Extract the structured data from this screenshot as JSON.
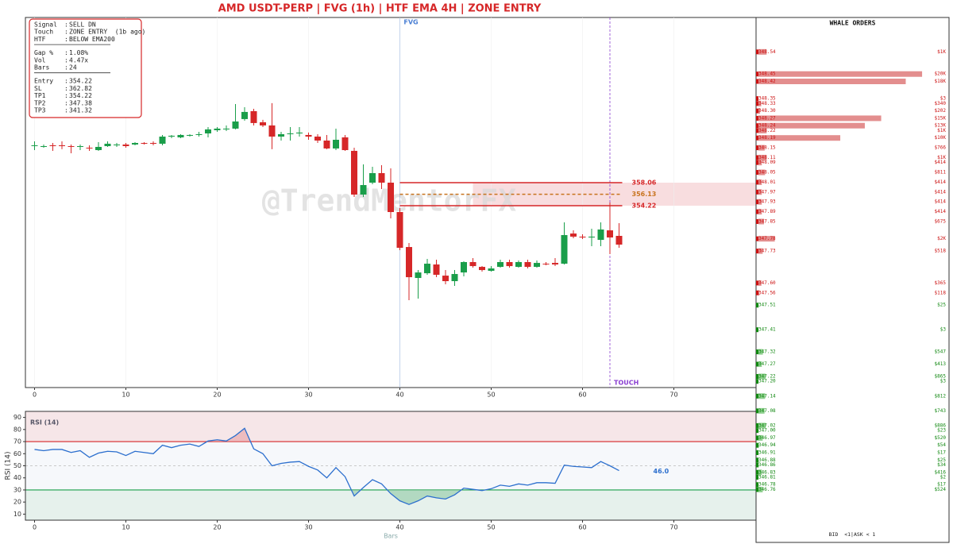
{
  "title": "AMD  USDT-PERP  |  FVG (1h)  |  HTF EMA 4H  |  ZONE ENTRY",
  "info_box": [
    [
      {
        "label": "Signal",
        "value": "SELL DN"
      },
      {
        "label": "Touch",
        "value": "ZONE ENTRY  (1b ago)"
      },
      {
        "label": "HTF",
        "value": "BELOW EMA200"
      }
    ],
    [
      {
        "label": "Gap %",
        "value": "1.08%"
      },
      {
        "label": "Vol",
        "value": "4.47x"
      },
      {
        "label": "Bars",
        "value": "24"
      }
    ],
    [
      {
        "label": "Entry",
        "value": "354.22"
      },
      {
        "label": "SL",
        "value": "362.82"
      },
      {
        "label": "TP1",
        "value": "354.22"
      },
      {
        "label": "TP2",
        "value": "347.38"
      },
      {
        "label": "TP3",
        "value": "341.32"
      }
    ]
  ],
  "chart_data": [
    {
      "type": "candlestick",
      "watermark": "@TrendMentorFX",
      "x": [
        0,
        1,
        2,
        3,
        4,
        5,
        6,
        7,
        8,
        9,
        10,
        11,
        12,
        13,
        14,
        15,
        16,
        17,
        18,
        19,
        20,
        21,
        22,
        23,
        24,
        25,
        26,
        27,
        28,
        29,
        30,
        31,
        32,
        33,
        34,
        35,
        36,
        37,
        38,
        39,
        40,
        41,
        42,
        43,
        44,
        45,
        46,
        47,
        48,
        49,
        50,
        51,
        52,
        53,
        54,
        55,
        56,
        57,
        58,
        59,
        60,
        61,
        62,
        63,
        64
      ],
      "ohlc": [
        [
          364.29,
          364.95,
          363.49,
          364.29
        ],
        [
          364.15,
          364.42,
          363.89,
          364.15
        ],
        [
          364.29,
          364.68,
          363.36,
          364.15
        ],
        [
          364.29,
          364.95,
          363.63,
          364.15
        ],
        [
          364.15,
          364.42,
          362.96,
          364.02
        ],
        [
          364.02,
          364.42,
          363.49,
          364.15
        ],
        [
          363.89,
          364.29,
          363.36,
          363.76
        ],
        [
          363.49,
          364.82,
          363.36,
          364.02
        ],
        [
          364.15,
          364.95,
          364.02,
          364.55
        ],
        [
          364.42,
          364.68,
          364.02,
          364.42
        ],
        [
          364.42,
          364.68,
          363.89,
          364.15
        ],
        [
          364.42,
          364.82,
          364.29,
          364.68
        ],
        [
          364.68,
          364.82,
          364.42,
          364.55
        ],
        [
          364.68,
          364.95,
          364.29,
          364.55
        ],
        [
          364.55,
          366.01,
          364.29,
          365.74
        ],
        [
          365.74,
          366.01,
          365.48,
          365.88
        ],
        [
          365.61,
          366.14,
          365.48,
          366.01
        ],
        [
          366.01,
          366.14,
          365.74,
          366.01
        ],
        [
          366.01,
          366.54,
          365.74,
          366.14
        ],
        [
          366.27,
          367.33,
          365.61,
          366.94
        ],
        [
          366.8,
          367.33,
          366.54,
          367.07
        ],
        [
          367.07,
          367.6,
          366.67,
          367.07
        ],
        [
          367.07,
          371.17,
          366.94,
          368.26
        ],
        [
          368.66,
          370.64,
          368.39,
          369.85
        ],
        [
          369.98,
          370.38,
          367.6,
          368.0
        ],
        [
          368.13,
          368.53,
          367.33,
          367.6
        ],
        [
          367.6,
          371.31,
          363.63,
          365.74
        ],
        [
          365.74,
          366.54,
          365.08,
          366.14
        ],
        [
          366.14,
          367.33,
          365.08,
          366.27
        ],
        [
          366.27,
          367.33,
          365.74,
          366.41
        ],
        [
          366.01,
          366.41,
          365.21,
          365.74
        ],
        [
          365.74,
          366.14,
          364.68,
          365.08
        ],
        [
          365.08,
          366.01,
          363.63,
          363.76
        ],
        [
          363.76,
          367.07,
          363.49,
          365.21
        ],
        [
          365.61,
          366.01,
          363.36,
          363.49
        ],
        [
          363.36,
          363.89,
          355.68,
          356.07
        ],
        [
          356.07,
          361.11,
          355.68,
          357.66
        ],
        [
          358.06,
          360.71,
          357.8,
          359.65
        ],
        [
          359.65,
          360.98,
          357.0,
          358.06
        ],
        [
          358.06,
          360.45,
          352.1,
          353.16
        ],
        [
          353.16,
          353.82,
          346.8,
          347.2
        ],
        [
          347.33,
          347.99,
          338.46,
          342.3
        ],
        [
          342.17,
          343.49,
          338.73,
          343.09
        ],
        [
          342.96,
          345.35,
          342.7,
          344.55
        ],
        [
          344.42,
          345.21,
          342.3,
          342.7
        ],
        [
          342.56,
          343.49,
          341.11,
          341.64
        ],
        [
          341.64,
          343.49,
          340.84,
          342.83
        ],
        [
          343.09,
          344.95,
          342.43,
          344.82
        ],
        [
          344.82,
          345.48,
          343.89,
          344.15
        ],
        [
          344.02,
          344.15,
          343.23,
          343.49
        ],
        [
          343.36,
          344.15,
          343.23,
          343.76
        ],
        [
          344.02,
          345.21,
          343.89,
          344.82
        ],
        [
          344.82,
          345.21,
          343.89,
          344.15
        ],
        [
          344.02,
          345.08,
          343.89,
          344.82
        ],
        [
          344.82,
          345.21,
          343.76,
          344.02
        ],
        [
          344.02,
          345.08,
          343.89,
          344.68
        ],
        [
          344.55,
          344.82,
          344.29,
          344.42
        ],
        [
          344.68,
          345.48,
          344.15,
          344.42
        ],
        [
          344.55,
          351.44,
          344.42,
          349.32
        ],
        [
          349.58,
          350.11,
          348.79,
          349.06
        ],
        [
          349.06,
          349.45,
          348.66,
          348.92
        ],
        [
          348.92,
          350.38,
          347.47,
          349.06
        ],
        [
          348.52,
          351.44,
          347.47,
          350.25
        ],
        [
          350.11,
          354.75,
          346.14,
          348.92
        ],
        [
          349.19,
          351.31,
          347.2,
          347.73
        ]
      ],
      "up_color": "#1a9e4a",
      "down_color": "#d62728",
      "xlim": [
        -1,
        79
      ],
      "ylim": [
        323.9,
        385.6
      ],
      "xticks": [
        0,
        10,
        20,
        30,
        40,
        50,
        60,
        70
      ],
      "grid": true,
      "levels": [
        {
          "value": 358.06,
          "color": "#d62728",
          "style": "solid"
        },
        {
          "value": 356.13,
          "color": "#c8731e",
          "style": "dashed"
        },
        {
          "value": 354.22,
          "color": "#d62728",
          "style": "solid"
        }
      ],
      "zone": {
        "x_start": 48,
        "color": "#f6d2d4"
      },
      "markers": [
        {
          "x": 40,
          "label": "FVG",
          "color": "#4a7fd4"
        },
        {
          "x": 63,
          "label": "TOUCH",
          "color": "#8a3fd1"
        }
      ]
    },
    {
      "type": "line",
      "title": "RSI (14)",
      "ylabel": "RSI (14)",
      "xlabel": "Bars",
      "x": [
        0,
        1,
        2,
        3,
        4,
        5,
        6,
        7,
        8,
        9,
        10,
        11,
        12,
        13,
        14,
        15,
        16,
        17,
        18,
        19,
        20,
        21,
        22,
        23,
        24,
        25,
        26,
        27,
        28,
        29,
        30,
        31,
        32,
        33,
        34,
        35,
        36,
        37,
        38,
        39,
        40,
        41,
        42,
        43,
        44,
        45,
        46,
        47,
        48,
        49,
        50,
        51,
        52,
        53,
        54,
        55,
        56,
        57,
        58,
        59,
        60,
        61,
        62,
        63,
        64
      ],
      "values": [
        63.5,
        62.5,
        63.5,
        63.5,
        61,
        62.5,
        57,
        60.5,
        62,
        61.5,
        58.5,
        62,
        61,
        60,
        67,
        65,
        67,
        68,
        66,
        70.5,
        71.5,
        70.5,
        75,
        81,
        64,
        60,
        50,
        52,
        53,
        53.5,
        49.5,
        46.5,
        40,
        48.5,
        41,
        25,
        32,
        38.5,
        35,
        27,
        21,
        18,
        21,
        25,
        23.5,
        22.5,
        26,
        31.5,
        30.5,
        29.5,
        31,
        34,
        33,
        35,
        34,
        36,
        36,
        35.5,
        50.5,
        49.5,
        49,
        48.5,
        53.5,
        50,
        46
      ],
      "last_value_label": "46.0",
      "color": "#2c6fce",
      "xlim": [
        -1,
        79
      ],
      "ylim": [
        5,
        95
      ],
      "xticks": [
        0,
        10,
        20,
        30,
        40,
        50,
        60,
        70
      ],
      "yticks": [
        10,
        20,
        30,
        40,
        50,
        60,
        70,
        80,
        90
      ],
      "overbought": 70,
      "oversold": 30,
      "mid": 50
    }
  ],
  "whale_orders": {
    "title": "WHALE ORDERS",
    "ylim": [
      346.545,
      348.68
    ],
    "xlim": [
      0,
      23000
    ],
    "footer": "BID  <1|ASK < 1",
    "asks": {
      "color": "#cc1111",
      "bar_color": "#e38e8e",
      "prices": [
        348.54,
        348.45,
        348.42,
        348.35,
        348.33,
        348.3,
        348.27,
        348.24,
        348.22,
        348.19,
        348.15,
        348.11,
        348.09,
        348.05,
        348.01,
        347.97,
        347.93,
        347.89,
        347.85,
        347.78,
        347.73,
        347.6,
        347.56
      ],
      "price_labels": [
        "348.54",
        "348.45",
        "348.42",
        "348.35",
        "348.33",
        "348.30",
        "348.27",
        "348.24",
        "348.22",
        "348.19",
        "348.15",
        "348.11",
        "348.09",
        "348.05",
        "348.01",
        "347.97",
        "347.93",
        "347.89",
        "347.85",
        "347.78",
        "347.73",
        "347.60",
        "347.56"
      ],
      "sizes": [
        1000,
        20000,
        18000,
        3,
        340,
        202,
        15000,
        13000,
        1000,
        10000,
        766,
        1000,
        414,
        811,
        414,
        414,
        414,
        414,
        675,
        2000,
        518,
        365,
        118
      ],
      "size_labels": [
        "$1K",
        "$20K",
        "$18K",
        "$3",
        "$340",
        "$202",
        "$15K",
        "$13K",
        "$1K",
        "$10K",
        "$766",
        "$1K",
        "$414",
        "$811",
        "$414",
        "$414",
        "$414",
        "$414",
        "$675",
        "$2K",
        "$518",
        "$365",
        "$118"
      ]
    },
    "bids": {
      "color": "#118811",
      "bar_color": "#8ecf8e",
      "prices": [
        347.51,
        347.41,
        347.32,
        347.27,
        347.22,
        347.2,
        347.14,
        347.08,
        347.02,
        347.0,
        346.97,
        346.94,
        346.91,
        346.88,
        346.86,
        346.83,
        346.81,
        346.78,
        346.76
      ],
      "price_labels": [
        "347.51",
        "347.41",
        "347.32",
        "347.27",
        "347.22",
        "347.20",
        "347.14",
        "347.08",
        "347.02",
        "347.00",
        "346.97",
        "346.94",
        "346.91",
        "346.88",
        "346.86",
        "346.83",
        "346.81",
        "346.78",
        "346.76"
      ],
      "sizes": [
        25,
        3,
        547,
        413,
        865,
        3,
        812,
        743,
        886,
        23,
        520,
        54,
        17,
        25,
        34,
        416,
        2,
        17,
        524
      ],
      "size_labels": [
        "$25",
        "$3",
        "$547",
        "$413",
        "$865",
        "$3",
        "$812",
        "$743",
        "$886",
        "$23",
        "$520",
        "$54",
        "$17",
        "$25",
        "$34",
        "$416",
        "$2",
        "$17",
        "$524"
      ]
    }
  }
}
